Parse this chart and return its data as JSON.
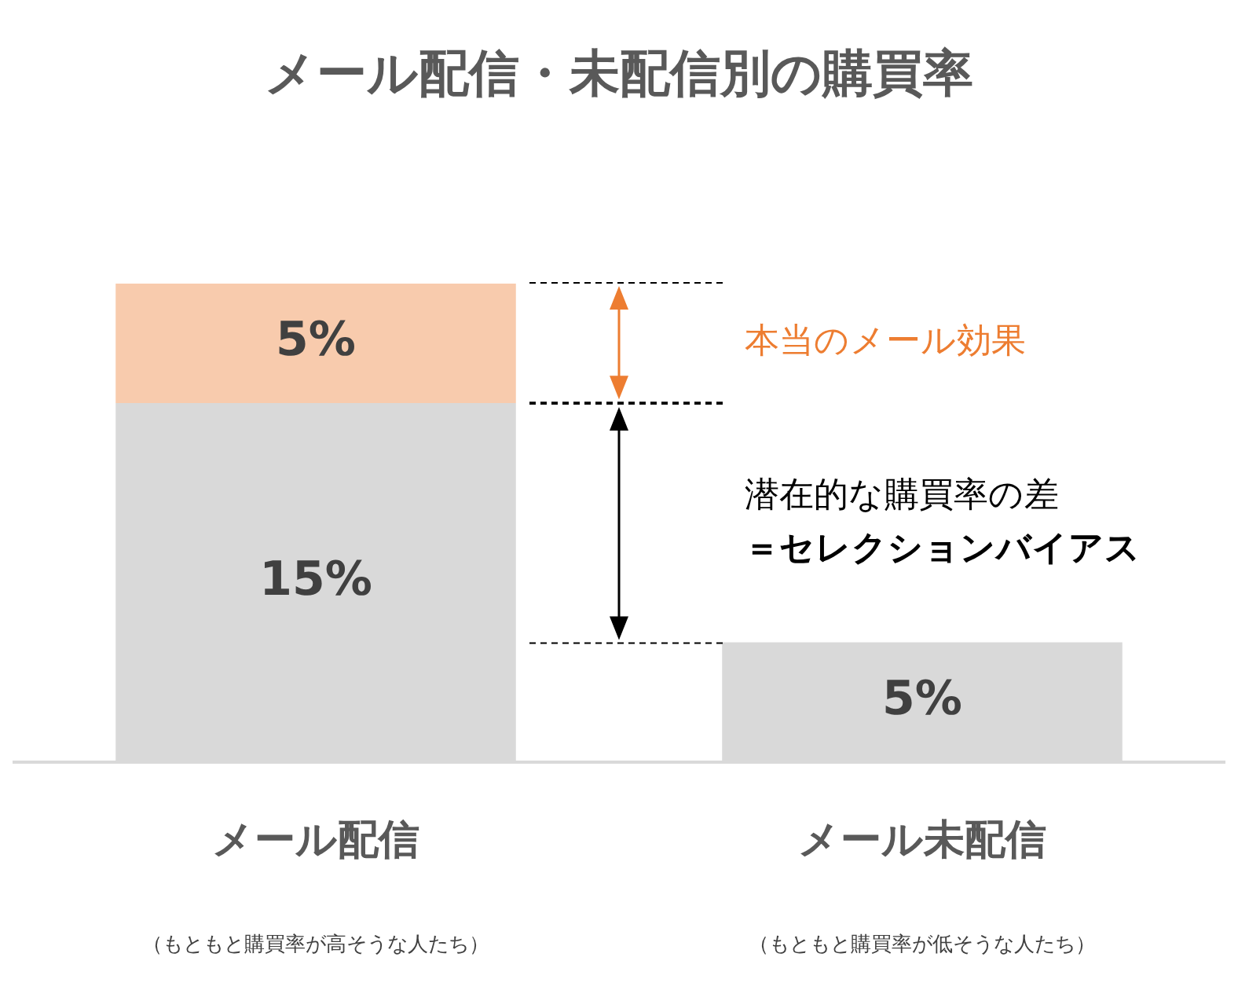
{
  "chart_data": {
    "type": "bar",
    "title": "メール配信・未配信別の購買率",
    "categories": [
      "メール配信",
      "メール未配信"
    ],
    "stacked": true,
    "grid": false,
    "legend": false,
    "series": [
      {
        "color": "#d9d9d9",
        "values": [
          15,
          5
        ],
        "value_labels": [
          "15%",
          "5%"
        ]
      },
      {
        "color": "#f8cbad",
        "values": [
          5,
          null
        ],
        "value_labels": [
          "5%",
          null
        ]
      }
    ],
    "ref_lines": [
      {
        "axis": "y",
        "value": 20,
        "line_style": "dashed",
        "color": "#000000"
      },
      {
        "axis": "y",
        "value": 15,
        "line_style": "dashed",
        "color": "#000000"
      },
      {
        "axis": "y",
        "value": 5,
        "line_style": "dashed",
        "color": "#000000"
      }
    ],
    "annotations": [
      "本当のメール効果",
      "潜在的な購買率の差",
      "＝セレクションバイアス",
      "（もともと購買率が高そうな人たち）",
      "（もともと購買率が低そうな人たち）"
    ]
  }
}
